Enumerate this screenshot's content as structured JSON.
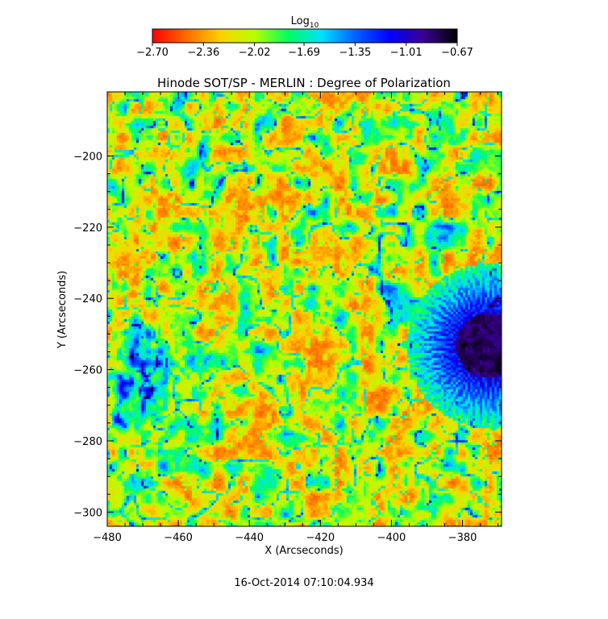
{
  "chart_data": {
    "type": "heatmap",
    "title": "Hinode SOT/SP - MERLIN : Degree of Polarization",
    "xlabel": "X (Arcseconds)",
    "ylabel": "Y (Arcseconds)",
    "xlim": [
      -480,
      -369
    ],
    "ylim": [
      -304,
      -182
    ],
    "x_ticks": [
      -480,
      -460,
      -440,
      -420,
      -400,
      -380
    ],
    "y_ticks": [
      -200,
      -220,
      -240,
      -260,
      -280,
      -300
    ],
    "x_tick_labels": [
      "−480",
      "−460",
      "−440",
      "−420",
      "−400",
      "−380"
    ],
    "y_tick_labels": [
      "−200",
      "−220",
      "−240",
      "−260",
      "−280",
      "−300"
    ],
    "colorbar": {
      "label_base": "Log",
      "label_sub": "10",
      "range": [
        -2.7,
        -0.67
      ],
      "ticks": [
        -2.7,
        -2.36,
        -2.02,
        -1.69,
        -1.35,
        -1.01,
        -0.67
      ],
      "tick_labels": [
        "−2.70",
        "−2.36",
        "−2.02",
        "−1.69",
        "−1.35",
        "−1.01",
        "−0.67"
      ],
      "colormap": [
        "#ff0000",
        "#ff6a00",
        "#ffd000",
        "#b8ff00",
        "#00ff60",
        "#00e0ff",
        "#0060ff",
        "#0000ff",
        "#3a0090",
        "#000000"
      ]
    },
    "features": {
      "sunspot_umbra_center": [
        -373,
        -253
      ],
      "sunspot_umbra_radius": 9,
      "sunspot_penumbra_radius": 17,
      "strong_region_center": [
        -470,
        -265
      ]
    }
  },
  "footer": {
    "timestamp": "16-Oct-2014 07:10:04.934"
  }
}
